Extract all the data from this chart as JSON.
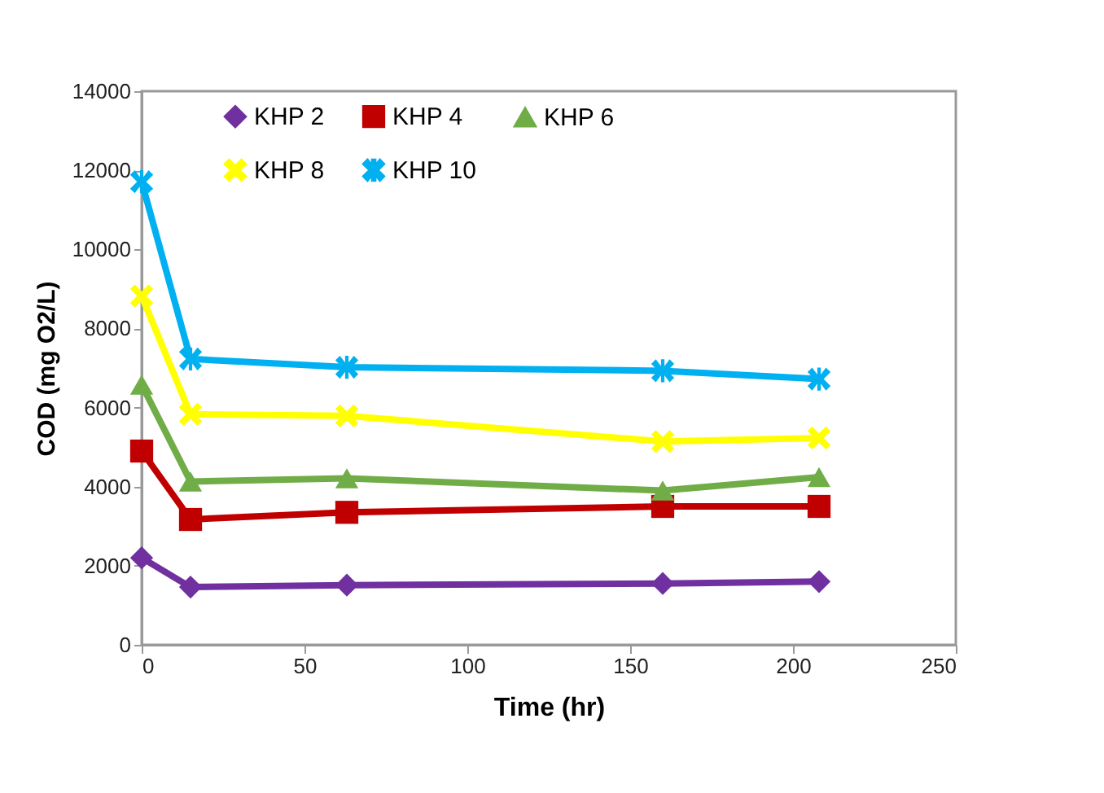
{
  "chart_data": {
    "type": "line",
    "xlabel": "Time (hr)",
    "ylabel": "COD (mg O2/L)",
    "x": [
      0,
      15,
      63,
      160,
      208
    ],
    "series": [
      {
        "name": "KHP 2",
        "color": "#7030a0",
        "marker": "diamond",
        "values": [
          2200,
          1460,
          1510,
          1550,
          1600
        ]
      },
      {
        "name": "KHP 4",
        "color": "#c00000",
        "marker": "square",
        "values": [
          4900,
          3170,
          3350,
          3500,
          3500
        ]
      },
      {
        "name": "KHP 6",
        "color": "#70ad47",
        "marker": "triangle",
        "values": [
          6580,
          4130,
          4210,
          3900,
          4240
        ]
      },
      {
        "name": "KHP 8",
        "color": "#ffff00",
        "marker": "cross",
        "values": [
          8820,
          5830,
          5790,
          5140,
          5230
        ]
      },
      {
        "name": "KHP 10",
        "color": "#00b0f0",
        "marker": "star",
        "values": [
          11710,
          7230,
          7020,
          6930,
          6720
        ]
      }
    ],
    "xlim": [
      0,
      250
    ],
    "xticks": [
      0,
      50,
      100,
      150,
      200,
      250
    ],
    "ylim": [
      0,
      14000
    ],
    "yticks": [
      0,
      2000,
      4000,
      6000,
      8000,
      10000,
      12000,
      14000
    ],
    "legend": "top",
    "grid": false
  }
}
